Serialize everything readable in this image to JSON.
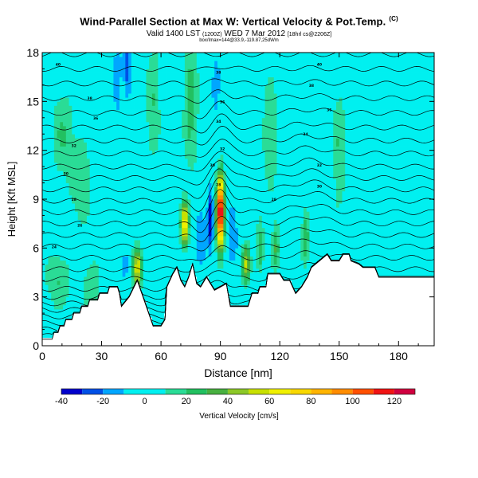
{
  "chart_data": {
    "type": "heatmap",
    "title": "Wind-Parallel Section at Max W: Vertical Velocity & Pot.Temp.",
    "title_mark": "(C)",
    "subtitle_main": "Valid 1400 LST",
    "subtitle_paren": "(1200Z)",
    "subtitle_date": "WED 7 Mar 2012",
    "subtitle_run": "[18hrl cs@2206Z]",
    "subtitle_info": "box/Imax=144@33.9,-119.87,25dWm",
    "xlabel": "Distance [nm]",
    "ylabel": "Height [Kft MSL]",
    "xlim": [
      0,
      198
    ],
    "ylim": [
      0,
      18
    ],
    "x_ticks": [
      0,
      30,
      60,
      90,
      120,
      150,
      180
    ],
    "y_ticks": [
      0,
      3,
      6,
      9,
      12,
      15,
      18
    ],
    "terrain": [
      [
        0,
        0.4
      ],
      [
        5,
        0.4
      ],
      [
        6,
        0.8
      ],
      [
        8,
        0.8
      ],
      [
        9,
        1.2
      ],
      [
        11,
        1.2
      ],
      [
        12,
        1.6
      ],
      [
        15,
        1.6
      ],
      [
        16,
        2.0
      ],
      [
        19,
        2.0
      ],
      [
        20,
        2.4
      ],
      [
        23,
        2.4
      ],
      [
        24,
        2.8
      ],
      [
        28,
        2.8
      ],
      [
        29,
        3.2
      ],
      [
        33,
        3.2
      ],
      [
        34,
        3.6
      ],
      [
        38,
        3.6
      ],
      [
        39,
        3.2
      ],
      [
        40,
        2.4
      ],
      [
        44,
        3.0
      ],
      [
        48,
        4.0
      ],
      [
        52,
        2.6
      ],
      [
        56,
        1.2
      ],
      [
        60,
        1.2
      ],
      [
        62,
        1.6
      ],
      [
        63,
        3.6
      ],
      [
        66,
        4.4
      ],
      [
        68,
        4.8
      ],
      [
        70,
        4.0
      ],
      [
        72,
        3.6
      ],
      [
        74,
        4.2
      ],
      [
        76,
        5.0
      ],
      [
        78,
        3.8
      ],
      [
        80,
        3.6
      ],
      [
        83,
        4.2
      ],
      [
        85,
        3.8
      ],
      [
        87,
        3.4
      ],
      [
        90,
        3.6
      ],
      [
        93,
        3.8
      ],
      [
        95,
        2.4
      ],
      [
        104,
        2.4
      ],
      [
        106,
        3.2
      ],
      [
        109,
        3.2
      ],
      [
        110,
        3.6
      ],
      [
        113,
        3.6
      ],
      [
        114,
        4.4
      ],
      [
        120,
        4.4
      ],
      [
        122,
        4.0
      ],
      [
        125,
        4.0
      ],
      [
        128,
        3.2
      ],
      [
        131,
        3.6
      ],
      [
        134,
        4.2
      ],
      [
        136,
        4.8
      ],
      [
        140,
        5.2
      ],
      [
        144,
        5.6
      ],
      [
        146,
        5.2
      ],
      [
        150,
        5.2
      ],
      [
        152,
        5.6
      ],
      [
        155,
        5.6
      ],
      [
        156,
        5.2
      ],
      [
        160,
        5.0
      ],
      [
        162,
        4.8
      ],
      [
        168,
        4.8
      ],
      [
        170,
        4.2
      ],
      [
        198,
        4.2
      ]
    ],
    "w_features": [
      {
        "x": 90,
        "y": 8.2,
        "value": 130,
        "sx": 2.0,
        "sy": 2.2
      },
      {
        "x": 85,
        "y": 7.8,
        "value": -40,
        "sx": 1.5,
        "sy": 1.8
      },
      {
        "x": 72,
        "y": 7.5,
        "value": 70,
        "sx": 2.0,
        "sy": 1.4
      },
      {
        "x": 48,
        "y": 4.8,
        "value": 60,
        "sx": 2.5,
        "sy": 1.3
      },
      {
        "x": 42,
        "y": 5.0,
        "value": -20,
        "sx": 1.7,
        "sy": 1.0
      },
      {
        "x": 80,
        "y": 6.5,
        "value": -20,
        "sx": 3.0,
        "sy": 2.0
      },
      {
        "x": 96,
        "y": 7.0,
        "value": -20,
        "sx": 3.0,
        "sy": 2.0
      },
      {
        "x": 103,
        "y": 5.0,
        "value": 50,
        "sx": 2.2,
        "sy": 1.2
      },
      {
        "x": 110,
        "y": 6.0,
        "value": 30,
        "sx": 2.0,
        "sy": 1.6
      },
      {
        "x": 118,
        "y": 6.0,
        "value": 30,
        "sx": 2.0,
        "sy": 1.6
      },
      {
        "x": 123,
        "y": 6.0,
        "value": -10,
        "sx": 1.5,
        "sy": 1.5
      },
      {
        "x": 133,
        "y": 6.5,
        "value": 30,
        "sx": 2.0,
        "sy": 1.8
      },
      {
        "x": 38,
        "y": 16.5,
        "value": -20,
        "sx": 2.0,
        "sy": 2.5
      },
      {
        "x": 43,
        "y": 17.0,
        "value": -25,
        "sx": 2.0,
        "sy": 2.0
      },
      {
        "x": 88,
        "y": 16.0,
        "value": -15,
        "sx": 2.5,
        "sy": 2.5
      },
      {
        "x": 56,
        "y": 15.0,
        "value": 20,
        "sx": 4.0,
        "sy": 4.0
      },
      {
        "x": 75,
        "y": 15.0,
        "value": 25,
        "sx": 4.0,
        "sy": 4.5
      },
      {
        "x": 115,
        "y": 13.0,
        "value": 20,
        "sx": 4.0,
        "sy": 4.0
      },
      {
        "x": 150,
        "y": 12.0,
        "value": 20,
        "sx": 4.0,
        "sy": 4.0
      },
      {
        "x": 10,
        "y": 13.0,
        "value": 20,
        "sx": 6.0,
        "sy": 3.0
      },
      {
        "x": 20,
        "y": 10.0,
        "value": 18,
        "sx": 6.0,
        "sy": 3.0
      },
      {
        "x": 8,
        "y": 4.0,
        "value": 20,
        "sx": 7.0,
        "sy": 2.0
      },
      {
        "x": 25,
        "y": 3.5,
        "value": 18,
        "sx": 5.0,
        "sy": 2.0
      }
    ],
    "isentrope_base": [
      0.6,
      1.0,
      1.4,
      1.8,
      2.2,
      2.6,
      3.0,
      3.5,
      4.1,
      4.7,
      5.4,
      6.1,
      6.8,
      7.5,
      8.2,
      8.9,
      9.6,
      10.3,
      11.0,
      11.8,
      12.6,
      13.4,
      14.3,
      15.2,
      16.1,
      17.0,
      17.9
    ],
    "contour_labels": [
      {
        "x": 8,
        "y": 17.3,
        "text": "40"
      },
      {
        "x": 24,
        "y": 15.2,
        "text": "38"
      },
      {
        "x": 27,
        "y": 14.0,
        "text": "36"
      },
      {
        "x": 16,
        "y": 12.3,
        "text": "32"
      },
      {
        "x": 12,
        "y": 10.6,
        "text": "30"
      },
      {
        "x": 16,
        "y": 9.0,
        "text": "28"
      },
      {
        "x": 19,
        "y": 7.4,
        "text": "26"
      },
      {
        "x": 6,
        "y": 6.1,
        "text": "24"
      },
      {
        "x": 89,
        "y": 16.8,
        "text": "38"
      },
      {
        "x": 91,
        "y": 15.0,
        "text": "36"
      },
      {
        "x": 89,
        "y": 13.8,
        "text": "34"
      },
      {
        "x": 91,
        "y": 12.1,
        "text": "32"
      },
      {
        "x": 86,
        "y": 11.1,
        "text": "30"
      },
      {
        "x": 89,
        "y": 9.9,
        "text": "28"
      },
      {
        "x": 117,
        "y": 9.0,
        "text": "28"
      },
      {
        "x": 140,
        "y": 17.3,
        "text": "40"
      },
      {
        "x": 136,
        "y": 16.0,
        "text": "38"
      },
      {
        "x": 145,
        "y": 14.5,
        "text": "36"
      },
      {
        "x": 133,
        "y": 13.0,
        "text": "34"
      },
      {
        "x": 140,
        "y": 11.1,
        "text": "32"
      },
      {
        "x": 140,
        "y": 9.8,
        "text": "30"
      }
    ],
    "colorbar": {
      "label": "Vertical Velocity [cm/s]",
      "ticks": [
        -40,
        -20,
        0,
        20,
        40,
        60,
        80,
        100,
        120
      ],
      "range": [
        -40,
        130
      ],
      "bins": [
        {
          "from": -40,
          "to": -30,
          "color": "#0000cc"
        },
        {
          "from": -30,
          "to": -20,
          "color": "#0050e6"
        },
        {
          "from": -20,
          "to": -10,
          "color": "#00a6ff"
        },
        {
          "from": -10,
          "to": 10,
          "color": "#00f0f0"
        },
        {
          "from": 10,
          "to": 20,
          "color": "#2adc96"
        },
        {
          "from": 20,
          "to": 30,
          "color": "#22c060"
        },
        {
          "from": 30,
          "to": 40,
          "color": "#48b040"
        },
        {
          "from": 40,
          "to": 50,
          "color": "#8cc828"
        },
        {
          "from": 50,
          "to": 60,
          "color": "#c8e000"
        },
        {
          "from": 60,
          "to": 70,
          "color": "#f0f000"
        },
        {
          "from": 70,
          "to": 80,
          "color": "#f8d800"
        },
        {
          "from": 80,
          "to": 90,
          "color": "#ffb400"
        },
        {
          "from": 90,
          "to": 100,
          "color": "#ff8c00"
        },
        {
          "from": 100,
          "to": 110,
          "color": "#ff5000"
        },
        {
          "from": 110,
          "to": 120,
          "color": "#f01414"
        },
        {
          "from": 120,
          "to": 130,
          "color": "#d00040"
        }
      ]
    }
  }
}
